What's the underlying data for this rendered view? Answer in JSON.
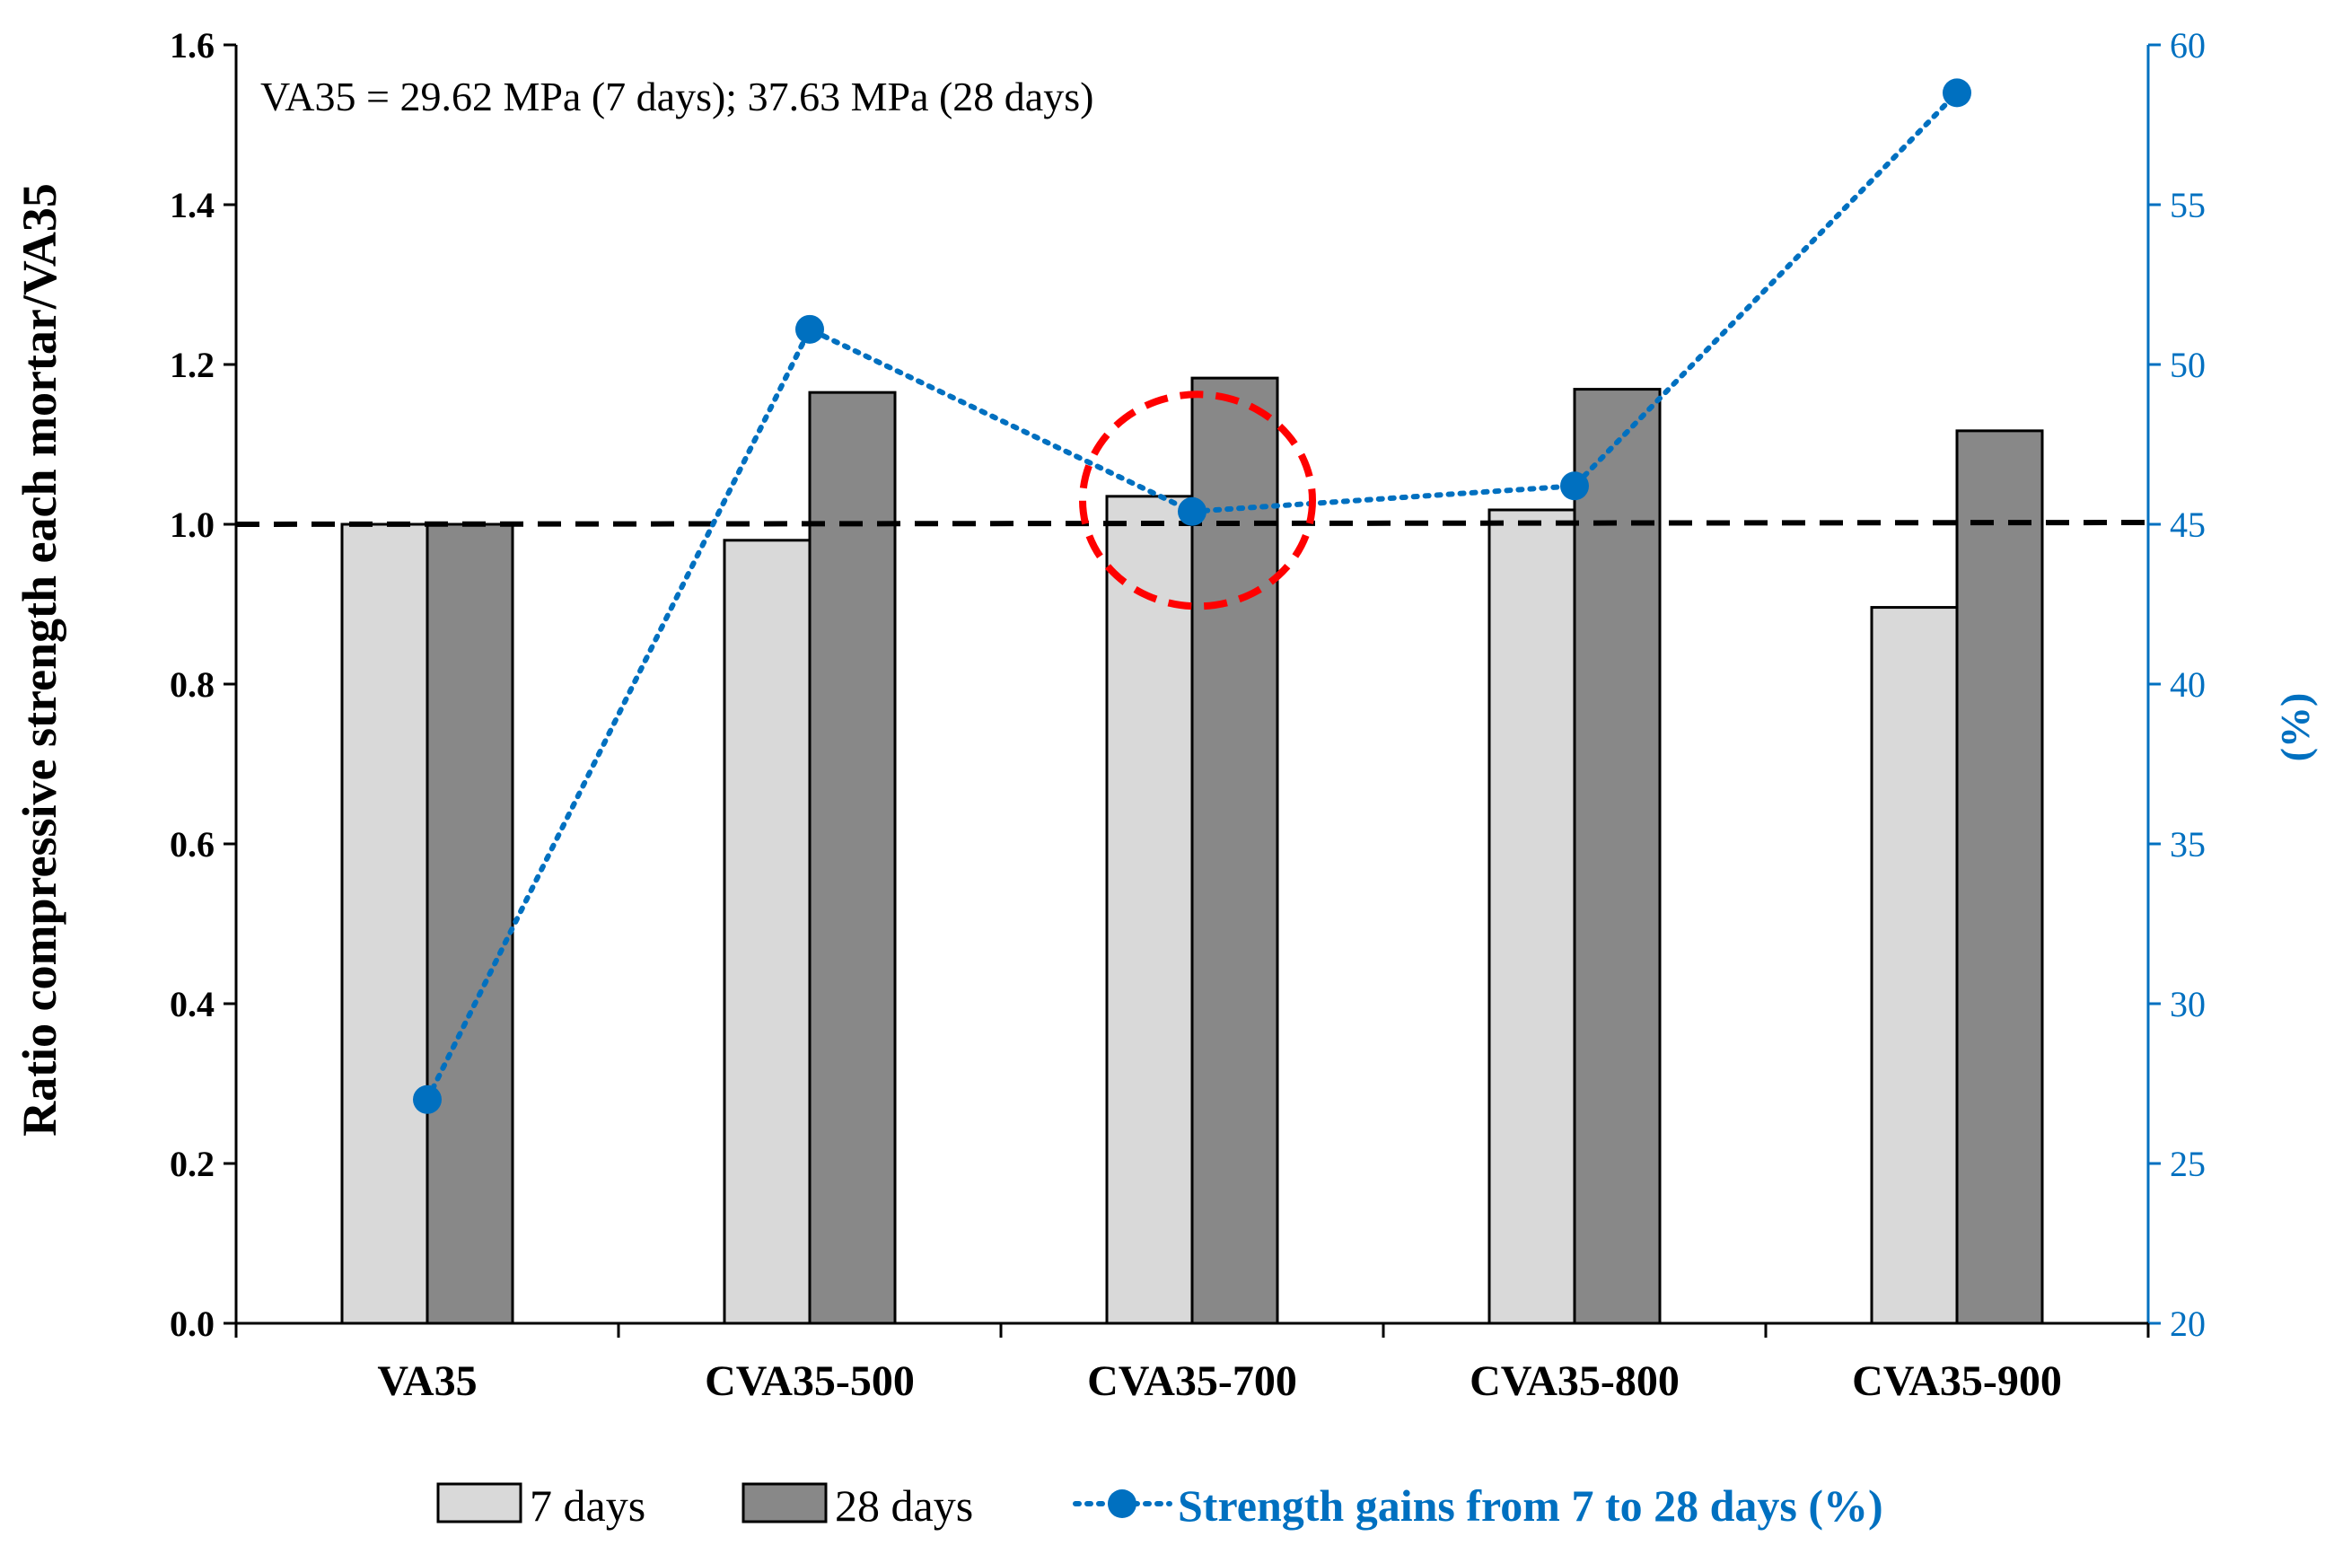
{
  "chart_data": {
    "type": "bar",
    "categories": [
      "VA35",
      "CVA35-500",
      "CVA35-700",
      "CVA35-800",
      "CVA35-900"
    ],
    "series": [
      {
        "name": "7 days",
        "axis": "left",
        "type": "bar",
        "color": "#d9d9d9",
        "values": [
          1.0,
          0.98,
          1.035,
          1.018,
          0.896
        ]
      },
      {
        "name": "28 days",
        "axis": "left",
        "type": "bar",
        "color": "#888888",
        "values": [
          1.0,
          1.165,
          1.183,
          1.169,
          1.117
        ]
      },
      {
        "name": "Strength gains from 7 to 28 days (%)",
        "axis": "right",
        "type": "line",
        "style": "dotted",
        "color": "#0070c0",
        "values": [
          27.0,
          51.1,
          45.4,
          46.2,
          58.5
        ]
      }
    ],
    "ylabel": "Ratio compressive strength each mortar/VA35",
    "ylabel_right": "(%)",
    "ylim": [
      0,
      1.6
    ],
    "ylim_right": [
      20,
      60
    ],
    "yticks": [
      "0.0",
      "0.2",
      "0.4",
      "0.6",
      "0.8",
      "1.0",
      "1.2",
      "1.4",
      "1.6"
    ],
    "yticks_right": [
      "20",
      "25",
      "30",
      "35",
      "40",
      "45",
      "50",
      "55",
      "60"
    ],
    "reference_line": {
      "value": 1.0,
      "style": "dashed",
      "color": "#000000"
    },
    "highlight": {
      "category": "CVA35-700",
      "shape": "dashed-ellipse",
      "color": "#ff0000"
    },
    "annotation": "VA35 = 29.62 MPa (7 days);  37.63 MPa (28 days)",
    "legend": {
      "placement": "bottom",
      "entries": [
        "7 days",
        "28 days",
        "Strength gains from 7 to 28 days (%)"
      ]
    },
    "grid": false
  }
}
